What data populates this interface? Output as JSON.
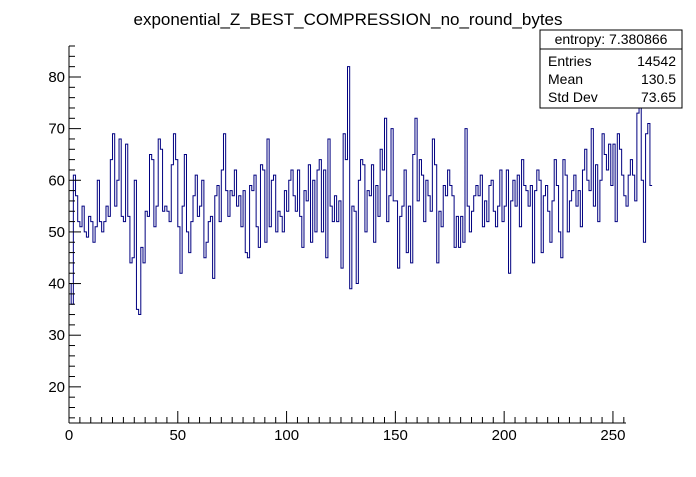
{
  "chart_data": {
    "type": "histogram",
    "title": "exponential_Z_BEST_COMPRESSION_no_round_bytes",
    "xlabel": "",
    "ylabel": "",
    "xlim": [
      0,
      256
    ],
    "ylim": [
      13,
      86
    ],
    "x_ticks": [
      "0",
      "50",
      "100",
      "150",
      "200",
      "250"
    ],
    "y_ticks": [
      "20",
      "30",
      "40",
      "50",
      "60",
      "70",
      "80"
    ],
    "bin_width": 1,
    "line_color": "#000080",
    "values": [
      40,
      36,
      61,
      57,
      52,
      51,
      55,
      50,
      49,
      53,
      52,
      48,
      51,
      60,
      52,
      50,
      52,
      55,
      53,
      64,
      69,
      55,
      60,
      68,
      53,
      52,
      67,
      53,
      44,
      45,
      60,
      35,
      34,
      47,
      44,
      54,
      53,
      65,
      64,
      51,
      55,
      68,
      66,
      54,
      55,
      54,
      52,
      63,
      69,
      64,
      51,
      42,
      55,
      65,
      50,
      46,
      52,
      57,
      61,
      53,
      55,
      60,
      45,
      48,
      52,
      53,
      41,
      57,
      59,
      52,
      62,
      69,
      58,
      53,
      58,
      57,
      62,
      55,
      57,
      51,
      58,
      46,
      45,
      59,
      58,
      61,
      51,
      47,
      63,
      62,
      48,
      68,
      51,
      60,
      61,
      50,
      54,
      53,
      50,
      58,
      54,
      60,
      62,
      57,
      54,
      62,
      53,
      47,
      58,
      56,
      63,
      48,
      60,
      50,
      62,
      64,
      50,
      62,
      45,
      68,
      55,
      52,
      57,
      52,
      56,
      43,
      69,
      64,
      82,
      39,
      55,
      54,
      40,
      60,
      64,
      63,
      50,
      58,
      57,
      63,
      48,
      59,
      53,
      66,
      62,
      72,
      52,
      57,
      70,
      56,
      56,
      43,
      53,
      55,
      62,
      46,
      55,
      44,
      65,
      72,
      56,
      64,
      61,
      52,
      60,
      57,
      54,
      68,
      63,
      44,
      54,
      51,
      59,
      57,
      62,
      59,
      57,
      47,
      53,
      47,
      53,
      48,
      70,
      55,
      50,
      54,
      57,
      59,
      57,
      61,
      51,
      56,
      52,
      59,
      60,
      54,
      51,
      55,
      62,
      52,
      55,
      62,
      42,
      56,
      60,
      55,
      61,
      51,
      64,
      59,
      58,
      55,
      59,
      44,
      58,
      62,
      60,
      46,
      57,
      59,
      54,
      48,
      56,
      64,
      59,
      50,
      45,
      64,
      61,
      50,
      56,
      58,
      61,
      55,
      58,
      51,
      62,
      66,
      60,
      58,
      70,
      55,
      63,
      52,
      60,
      69,
      65,
      62,
      67,
      59,
      67,
      52,
      69,
      66,
      61,
      57,
      55,
      61,
      64,
      61,
      56,
      73,
      75,
      60,
      48,
      69,
      71,
      59
    ]
  },
  "stats_box": {
    "title": "entropy: 7.380866",
    "rows": [
      {
        "label": "Entries",
        "value": "14542"
      },
      {
        "label": "Mean",
        "value": "130.5"
      },
      {
        "label": "Std Dev",
        "value": "73.65"
      }
    ]
  }
}
